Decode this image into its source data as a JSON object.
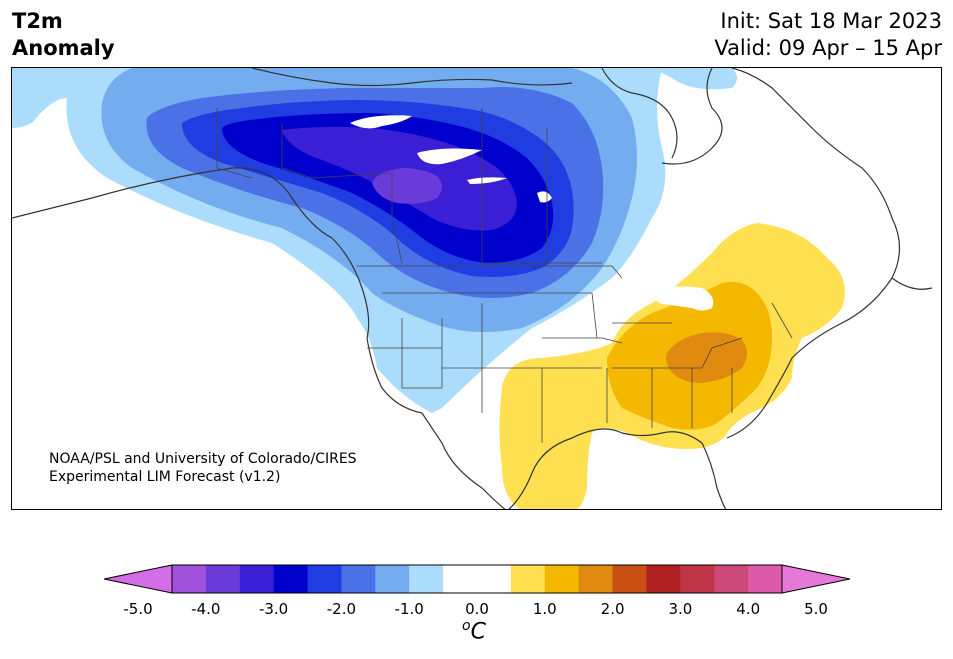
{
  "title": {
    "line1": "T2m",
    "line2": "Anomaly"
  },
  "dates": {
    "init": "Init: Sat 18 Mar 2023",
    "valid": "Valid: 09 Apr – 15 Apr"
  },
  "credit": {
    "line1": "NOAA/PSL and University of Colorado/CIRES",
    "line2": "Experimental LIM Forecast (v1.2)"
  },
  "colorbar": {
    "colors": [
      "#d26ee6",
      "#9f52d9",
      "#6a3bd9",
      "#3a1fd6",
      "#0000cd",
      "#1f3de0",
      "#4a72e6",
      "#73adf0",
      "#acdcfc",
      "#ffffff",
      "#ffffff",
      "#ffe050",
      "#f5b800",
      "#e08a10",
      "#c85012",
      "#b02020",
      "#c03448",
      "#cc4878",
      "#dc5aa8",
      "#e678d8"
    ],
    "ticks": [
      "-5.0",
      "-4.0",
      "-3.0",
      "-2.0",
      "-1.0",
      "0.0",
      "1.0",
      "2.0",
      "3.0",
      "4.0",
      "5.0"
    ],
    "units_base": "C",
    "units_sup": "o"
  },
  "anomaly_colors": {
    "neg1": "#acdcfc",
    "neg1_5": "#73adf0",
    "neg2": "#4a72e6",
    "neg2_5": "#1f3de0",
    "neg3": "#0000cd",
    "neg3_5": "#3a1fd6",
    "neg4": "#6a3bd9",
    "pos1": "#ffe050",
    "pos1_5": "#f5b800",
    "pos2": "#e08a10"
  }
}
